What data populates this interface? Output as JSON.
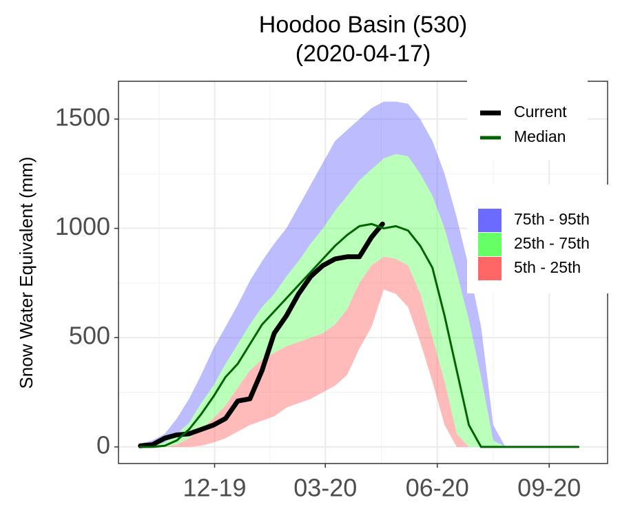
{
  "chart_data": {
    "type": "band-line",
    "title": "Hoodoo Basin (530)",
    "subtitle": "(2020-04-17)",
    "y_label": "Snow Water Equivalent (mm)",
    "xlim": [
      -18,
      384
    ],
    "ylim": [
      -76,
      1673
    ],
    "xticks": [
      {
        "value": 61,
        "label": "12-19"
      },
      {
        "value": 152,
        "label": "03-20"
      },
      {
        "value": 244,
        "label": "06-20"
      },
      {
        "value": 336,
        "label": "09-20"
      }
    ],
    "yticks": [
      0,
      500,
      1000,
      1500
    ],
    "grid": true,
    "x": [
      0,
      10,
      20,
      30,
      40,
      50,
      60,
      70,
      80,
      90,
      100,
      110,
      120,
      130,
      140,
      150,
      160,
      170,
      180,
      190,
      200,
      210,
      220,
      230,
      240,
      250,
      260,
      270,
      280,
      290,
      300,
      310,
      320,
      330,
      340,
      350,
      360
    ],
    "bands": [
      {
        "name": "75th - 95th",
        "color": "#6b6bff",
        "lower": [
          5,
          10,
          20,
          60,
          110,
          200,
          280,
          380,
          470,
          560,
          640,
          700,
          780,
          850,
          930,
          1000,
          1080,
          1150,
          1220,
          1270,
          1320,
          1340,
          1330,
          1250,
          1150,
          1000,
          800,
          580,
          320,
          30,
          0,
          0,
          0,
          0,
          0,
          0,
          0
        ],
        "upper": [
          15,
          30,
          60,
          130,
          220,
          330,
          450,
          550,
          650,
          760,
          850,
          930,
          1000,
          1100,
          1200,
          1300,
          1400,
          1450,
          1500,
          1550,
          1580,
          1580,
          1570,
          1500,
          1400,
          1250,
          1050,
          820,
          550,
          100,
          0,
          0,
          0,
          0,
          0,
          0,
          0
        ]
      },
      {
        "name": "25th - 75th",
        "color": "#66ff66",
        "lower": [
          0,
          0,
          0,
          10,
          40,
          80,
          130,
          190,
          270,
          350,
          400,
          430,
          460,
          480,
          500,
          520,
          560,
          630,
          750,
          830,
          870,
          860,
          830,
          700,
          500,
          300,
          60,
          0,
          0,
          0,
          0,
          0,
          0,
          0,
          0,
          0,
          0
        ],
        "upper": [
          5,
          10,
          20,
          60,
          110,
          200,
          280,
          380,
          470,
          560,
          640,
          700,
          780,
          850,
          930,
          1000,
          1080,
          1150,
          1220,
          1270,
          1320,
          1340,
          1330,
          1250,
          1150,
          1000,
          800,
          580,
          320,
          30,
          0,
          0,
          0,
          0,
          0,
          0,
          0
        ]
      },
      {
        "name": "5th - 25th",
        "color": "#ff6666",
        "lower": [
          0,
          0,
          0,
          0,
          0,
          5,
          20,
          40,
          70,
          100,
          120,
          140,
          180,
          200,
          220,
          250,
          280,
          330,
          450,
          550,
          720,
          700,
          640,
          480,
          300,
          100,
          0,
          0,
          0,
          0,
          0,
          0,
          0,
          0,
          0,
          0,
          0
        ],
        "upper": [
          0,
          0,
          0,
          10,
          40,
          80,
          130,
          190,
          270,
          350,
          400,
          430,
          460,
          480,
          500,
          520,
          560,
          630,
          750,
          830,
          870,
          860,
          830,
          700,
          500,
          300,
          60,
          0,
          0,
          0,
          0,
          0,
          0,
          0,
          0,
          0,
          0
        ]
      }
    ],
    "series": [
      {
        "name": "Current",
        "color": "#000000",
        "x": [
          0,
          10,
          20,
          30,
          40,
          50,
          60,
          70,
          80,
          90,
          100,
          110,
          120,
          130,
          140,
          150,
          160,
          170,
          180,
          190,
          199
        ],
        "values": [
          5,
          10,
          40,
          55,
          60,
          80,
          100,
          130,
          210,
          220,
          350,
          520,
          600,
          700,
          780,
          830,
          860,
          870,
          870,
          960,
          1020
        ]
      },
      {
        "name": "Median",
        "color": "#006400",
        "values": [
          0,
          0,
          5,
          30,
          80,
          150,
          230,
          320,
          380,
          470,
          560,
          620,
          680,
          740,
          800,
          860,
          920,
          970,
          1010,
          1020,
          1000,
          1010,
          990,
          920,
          820,
          600,
          350,
          100,
          0,
          0,
          0,
          0,
          0,
          0,
          0,
          0,
          0
        ]
      }
    ]
  }
}
